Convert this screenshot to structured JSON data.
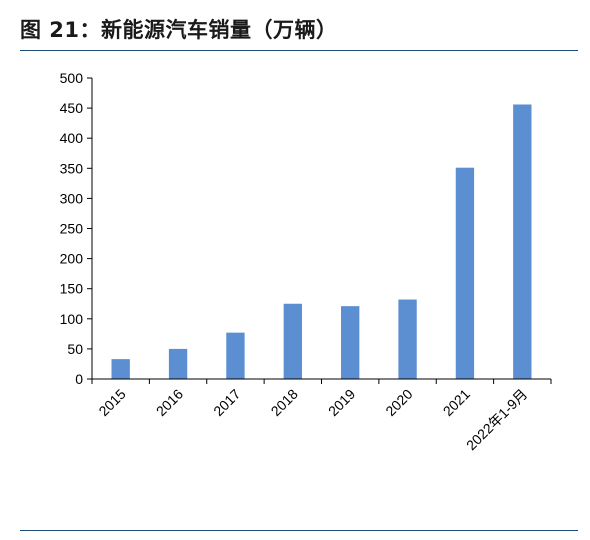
{
  "figure": {
    "title": "图 21：新能源汽车销量（万辆）"
  },
  "chart_data": {
    "type": "bar",
    "title": "图 21：新能源汽车销量（万辆）",
    "xlabel": "",
    "ylabel": "",
    "categories": [
      "2015",
      "2016",
      "2017",
      "2018",
      "2019",
      "2020",
      "2021",
      "2022年1-9月"
    ],
    "values": [
      33,
      50,
      77,
      125,
      121,
      132,
      351,
      456
    ],
    "ylim": [
      0,
      500
    ],
    "yticks": [
      0,
      50,
      100,
      150,
      200,
      250,
      300,
      350,
      400,
      450,
      500
    ],
    "grid": false,
    "legend": "none",
    "bar_color": "#5b8fd2",
    "axis_color": "#000000"
  }
}
